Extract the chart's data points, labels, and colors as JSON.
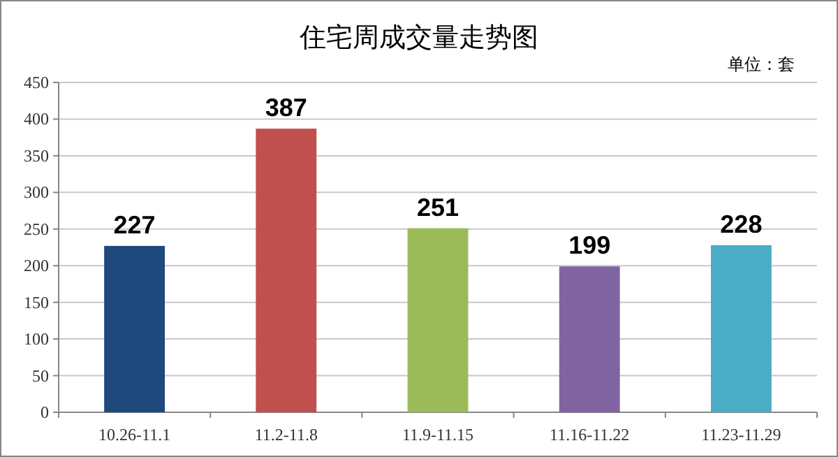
{
  "chart_data": {
    "type": "bar",
    "title": "住宅周成交量走势图",
    "annotations": [
      "单位：套"
    ],
    "categories": [
      "10.26-11.1",
      "11.2-11.8",
      "11.9-11.15",
      "11.16-11.22",
      "11.23-11.29"
    ],
    "values": [
      227,
      387,
      251,
      199,
      228
    ],
    "colors": [
      "#1f497d",
      "#c0504d",
      "#9bbb59",
      "#8064a2",
      "#4bacc6"
    ],
    "ylim": [
      0,
      450
    ],
    "yticks": [
      0,
      50,
      100,
      150,
      200,
      250,
      300,
      350,
      400,
      450
    ],
    "grid": "y",
    "data_labels": true
  }
}
